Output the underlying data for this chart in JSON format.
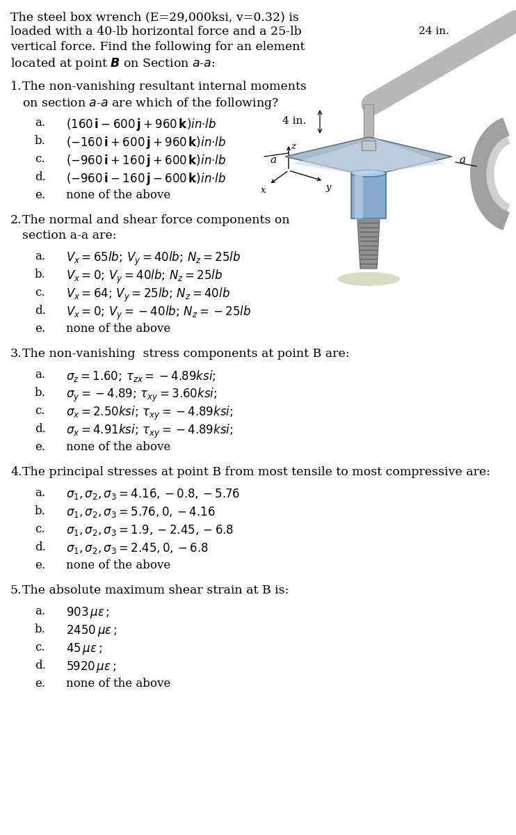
{
  "bg_color": "#ffffff",
  "text_color": "#000000",
  "fs_intro": 12.5,
  "fs_q": 12.5,
  "fs_c": 12.0,
  "intro": [
    "The steel box wrench (E=29,000ksi, v=0.32) is",
    "loaded with a 40-lb horizontal force and a 25-lb",
    "vertical force. Find the following for an element",
    "located at point $\\boldsymbol{B}$ on Section $a$-$a$:"
  ],
  "questions": [
    {
      "num": "1.",
      "lines": [
        "The non-vanishing resultant internal moments",
        "on section $a$-$a$ are which of the following?"
      ],
      "choices": [
        "a.~~$(160\\,\\mathbf{i}-600\\,\\mathbf{j}+960\\,\\mathbf{k})in{\\cdot}lb$",
        "b.~~$(-160\\,\\mathbf{i}+600\\,\\mathbf{j}+960\\,\\mathbf{k})in{\\cdot}lb$",
        "c.~~$(-960\\,\\mathbf{i}+160\\,\\mathbf{j}+600\\,\\mathbf{k})in{\\cdot}lb$",
        "d.~~$(-960\\,\\mathbf{i}-160\\,\\mathbf{j}-600\\,\\mathbf{k})in{\\cdot}lb$",
        "e.~~none of the above"
      ]
    },
    {
      "num": "2.",
      "lines": [
        "The normal and shear force components on",
        "section a-a are:"
      ],
      "choices": [
        "a.~~$V_x=65lb;\\,V_y=40lb;\\,N_z=25lb$",
        "b.~~$V_x=0;\\,V_y=40lb;\\,N_z=25lb$",
        "c.~~$V_x=64;\\,V_y=25lb;\\,N_z=40lb$",
        "d.~~$V_x=0;\\,V_y=-40lb;\\,N_z=-25lb$",
        "e.~~none of the above"
      ]
    },
    {
      "num": "3.",
      "lines": [
        "The non-vanishing  stress components at point B are:"
      ],
      "choices": [
        "a.~~$\\sigma_z=1.60;\\,\\tau_{zx}=-4.89ksi;$",
        "b.~~$\\sigma_y=-4.89;\\,\\tau_{xy}=3.60ksi;$",
        "c.~~$\\sigma_x=2.50ksi;\\,\\tau_{xy}=-4.89ksi;$",
        "d.~~$\\sigma_x=4.91ksi;\\,\\tau_{xy}=-4.89ksi;$",
        "e.~~none of the above"
      ]
    },
    {
      "num": "4.",
      "lines": [
        "The principal stresses at point B from most tensile to most compressive are:"
      ],
      "choices": [
        "a.~~$\\sigma_1,\\sigma_2,\\sigma_3=4.16,-0.8,-5.76$",
        "b.~~$\\sigma_1,\\sigma_2,\\sigma_3=5.76,0,-4.16$",
        "c.~~$\\sigma_1,\\sigma_2,\\sigma_3=1.9,-2.45,-6.8$",
        "d.~~$\\sigma_1,\\sigma_2,\\sigma_3=2.45,0,-6.8$",
        "e.~~none of the above"
      ]
    },
    {
      "num": "5.",
      "lines": [
        "The absolute maximum shear strain at B is:"
      ],
      "choices": [
        "a.~~$903\\,\\mu\\varepsilon\\,;$",
        "b.~~$2450\\,\\mu\\varepsilon\\,;$",
        "c.~~$45\\,\\mu\\varepsilon\\,;$",
        "d.~~$5920\\,\\mu\\varepsilon\\,;$",
        "e.~~none of the above"
      ]
    }
  ],
  "diagram": {
    "label_24in": "24 in.",
    "label_4in": "4 in.",
    "wrench_color": "#b8b8b8",
    "bolt_color": "#88aacc",
    "flange_color": "#aabbcc",
    "shadow_color": "#ccccbb"
  }
}
